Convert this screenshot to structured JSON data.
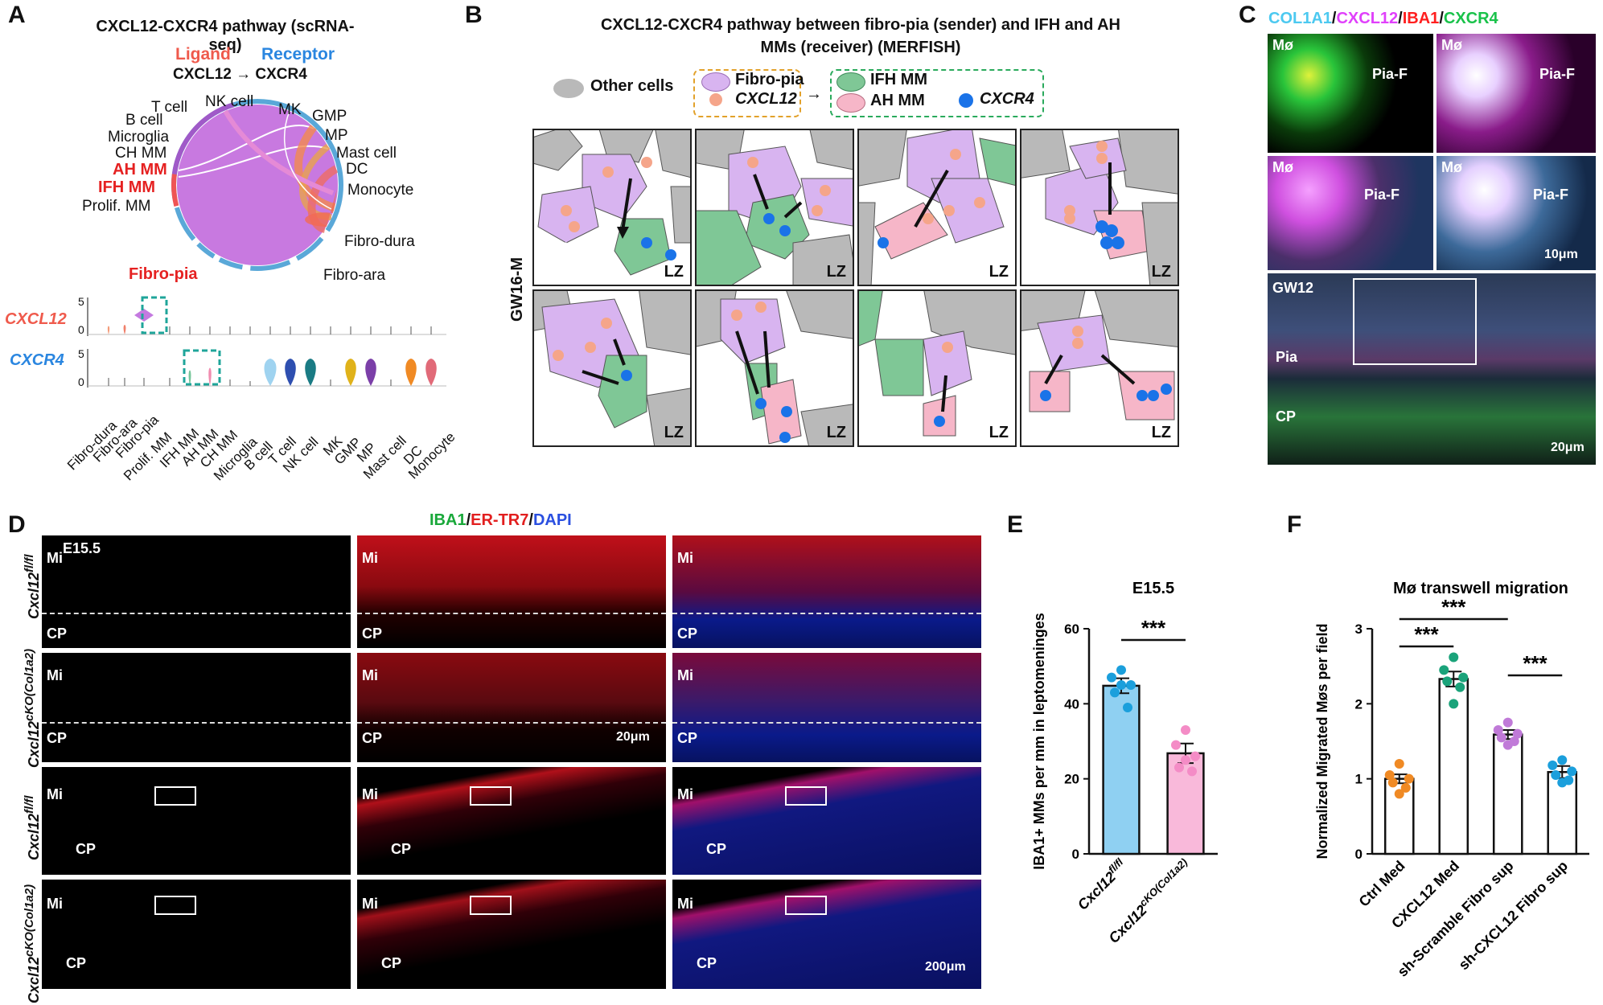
{
  "panels": {
    "A": "A",
    "B": "B",
    "C": "C",
    "D": "D",
    "E": "E",
    "F": "F"
  },
  "colors": {
    "fibro_pia": "#d8b4f0",
    "ifh_mm": "#7fc796",
    "ah_mm": "#f6b6c8",
    "other": "#b9b9b9",
    "cxcl12_dot": "#f5a58a",
    "cxcr4_dot": "#1a73e8",
    "col1a1": "#4cc9f0",
    "cxcl12": "#e040fb",
    "iba1": "#ff1f1f",
    "cxcr4": "#19c24a"
  },
  "panelA": {
    "title": "CXCL12-CXCR4 pathway (scRNA-seq)",
    "ligand": "Ligand",
    "receptor": "Receptor",
    "pair": "CXCL12 → CXCR4",
    "chord_labels": [
      "T cell",
      "NK cell",
      "MK",
      "GMP",
      "B cell",
      "MP",
      "Microglia",
      "Mast cell",
      "CH MM",
      "DC",
      "AH MM",
      "IFH MM",
      "Monocyte",
      "Prolif. MM",
      "Fibro-dura",
      "Fibro-ara",
      "Fibro-pia"
    ],
    "gene1": "CXCL12",
    "gene2": "CXCR4",
    "cell_types": [
      "Fibro-dura",
      "Fibro-ara",
      "Fibro-pia",
      "Prolif. MM",
      "IFH MM",
      "AH MM",
      "CH MM",
      "Microglia",
      "B cell",
      "T cell",
      "NK cell",
      "MK",
      "GMP",
      "MP",
      "Mast cell",
      "DC",
      "Monocyte"
    ]
  },
  "panelB": {
    "title_line1": "CXCL12-CXCR4 pathway between fibro-pia (sender) and IFH and AH",
    "title_line2": "MMs (receiver) (MERFISH)",
    "legend_other": "Other cells",
    "legend_fibro": "Fibro-pia",
    "legend_cxcl12": "CXCL12",
    "legend_ifh": "IFH MM",
    "legend_ah": "AH MM",
    "legend_cxcr4": "CXCR4",
    "row_label": "GW16-M",
    "tile_label": "LZ"
  },
  "panelC": {
    "t1": "COL1A1",
    "sep": "/",
    "t2": "CXCL12",
    "t3": "IBA1",
    "t4": "CXCR4",
    "mo": "Mø",
    "piaf": "Pia-F",
    "scale1": "10μm",
    "gw": "GW12",
    "pia": "Pia",
    "cp": "CP",
    "scale2": "20μm"
  },
  "panelD": {
    "header_iba": "IBA1",
    "header_er": "ER-TR7",
    "header_dapi": "DAPI",
    "sep": "/",
    "e155": "E15.5",
    "mi": "Mi",
    "cp": "CP",
    "scale1": "20μm",
    "scale2": "200μm",
    "rows": [
      {
        "base": "Cxcl12",
        "sup": "fl/fl"
      },
      {
        "base": "Cxcl12",
        "sup": "cKO(Col1a2)"
      },
      {
        "base": "Cxcl12",
        "sup": "fl/fl"
      },
      {
        "base": "Cxcl12",
        "sup": "cKO(Col1a2)"
      }
    ]
  },
  "panelE": {
    "title": "E15.5",
    "ylabel": "IBA1+ MMs per mm in leptomeninges",
    "sig": "***"
  },
  "panelF": {
    "title": "Mø transwell migration",
    "ylabel": "Normalized Migrated Møs per field",
    "sig": "***"
  },
  "chart_data": [
    {
      "type": "bar",
      "title": "E15.5",
      "ylabel": "IBA1+ MMs per mm in leptomeninges",
      "categories": [
        "Cxcl12fl/fl",
        "Cxcl12cKO(Col1a2)"
      ],
      "values": [
        44.8,
        26.8
      ],
      "errors": [
        2.0,
        2.6
      ],
      "points": [
        [
          49,
          47,
          45,
          43,
          39,
          45
        ],
        [
          33,
          29,
          26,
          23,
          22,
          25
        ]
      ],
      "ylim": [
        0,
        60
      ],
      "yticks": [
        0,
        20,
        40,
        60
      ],
      "colors": [
        "#8fd0f2",
        "#f9b9da"
      ],
      "dot_colors": [
        "#1b9fdc",
        "#f48cc6"
      ],
      "significance": [
        {
          "pair": [
            0,
            1
          ],
          "label": "***"
        }
      ]
    },
    {
      "type": "bar",
      "title": "Mø transwell migration",
      "ylabel": "Normalized Migrated Møs per field",
      "categories": [
        "Ctrl Med",
        "CXCL12 Med",
        "sh-Scramble Fibro sup",
        "sh-CXCL12 Fibro sup"
      ],
      "values": [
        1.0,
        2.33,
        1.59,
        1.09
      ],
      "errors": [
        0.06,
        0.1,
        0.06,
        0.08
      ],
      "points": [
        [
          1.2,
          1.05,
          1.0,
          0.95,
          0.88,
          0.8
        ],
        [
          2.62,
          2.45,
          2.35,
          2.3,
          2.22,
          2.0
        ],
        [
          1.75,
          1.65,
          1.6,
          1.55,
          1.5,
          1.45
        ],
        [
          1.25,
          1.18,
          1.1,
          1.05,
          0.98,
          0.95
        ]
      ],
      "ylim": [
        0,
        3
      ],
      "yticks": [
        0,
        1,
        2,
        3
      ],
      "colors": [
        "#ffffff",
        "#ffffff",
        "#ffffff",
        "#ffffff"
      ],
      "dot_colors": [
        "#f08a24",
        "#1aa37a",
        "#c07ad8",
        "#1b9fdc"
      ],
      "significance": [
        {
          "pair": [
            0,
            2
          ],
          "label": "***"
        },
        {
          "pair": [
            0,
            1
          ],
          "label": "***"
        },
        {
          "pair": [
            2,
            3
          ],
          "label": "***"
        }
      ]
    }
  ]
}
